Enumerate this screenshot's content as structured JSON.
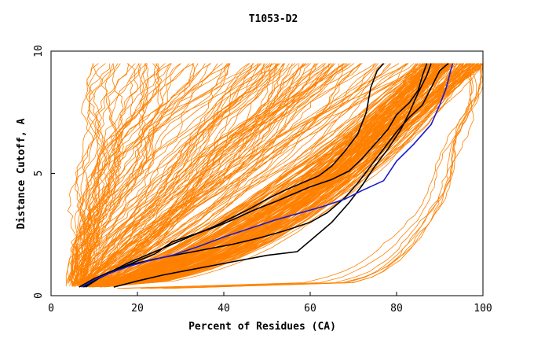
{
  "chart_data": {
    "type": "line",
    "title": "T1053-D2",
    "xlabel": "Percent of Residues (CA)",
    "ylabel": "Distance Cutoff, A",
    "xlim": [
      0,
      100
    ],
    "ylim": [
      0,
      10
    ],
    "x_ticks": [
      0,
      20,
      40,
      60,
      80,
      100
    ],
    "y_ticks": [
      0,
      5,
      10
    ],
    "grid": false,
    "colors": {
      "background_models": "#ff8000",
      "highlight_black": "#000000",
      "highlight_blue": "#1a1acc"
    },
    "background_models": {
      "description": "Approximately 300 orange model curves showing percent of residues within distance cutoff",
      "count": 300,
      "endpoint_range_pct": [
        10,
        100
      ]
    },
    "series": [
      {
        "name": "model-black-1",
        "color": "#000000",
        "points": [
          [
            7.5,
            0.35
          ],
          [
            10,
            0.6
          ],
          [
            14,
            1.0
          ],
          [
            18,
            1.35
          ],
          [
            22,
            1.65
          ],
          [
            26,
            1.95
          ],
          [
            30,
            2.25
          ],
          [
            34,
            2.55
          ],
          [
            38,
            2.85
          ],
          [
            42,
            3.2
          ],
          [
            46,
            3.55
          ],
          [
            50,
            3.95
          ],
          [
            54,
            4.3
          ],
          [
            58,
            4.6
          ],
          [
            62,
            4.9
          ],
          [
            65,
            5.3
          ],
          [
            68,
            5.9
          ],
          [
            71,
            6.6
          ],
          [
            73,
            7.5
          ],
          [
            74,
            8.5
          ],
          [
            75.5,
            9.2
          ],
          [
            77,
            9.5
          ]
        ]
      },
      {
        "name": "model-black-2",
        "color": "#000000",
        "points": [
          [
            14.5,
            0.35
          ],
          [
            20,
            0.6
          ],
          [
            26,
            0.85
          ],
          [
            32,
            1.05
          ],
          [
            38,
            1.25
          ],
          [
            44,
            1.45
          ],
          [
            50,
            1.65
          ],
          [
            57,
            1.8
          ],
          [
            61,
            2.4
          ],
          [
            65,
            3.0
          ],
          [
            69,
            3.8
          ],
          [
            72,
            4.5
          ],
          [
            75,
            5.3
          ],
          [
            78,
            6.0
          ],
          [
            81,
            6.8
          ],
          [
            83,
            7.5
          ],
          [
            85,
            8.3
          ],
          [
            87,
            9.0
          ],
          [
            88,
            9.5
          ]
        ]
      },
      {
        "name": "model-black-3",
        "color": "#000000",
        "points": [
          [
            6.5,
            0.35
          ],
          [
            10,
            0.7
          ],
          [
            14,
            1.0
          ],
          [
            19,
            1.3
          ],
          [
            24,
            1.5
          ],
          [
            30,
            1.7
          ],
          [
            36,
            1.9
          ],
          [
            42,
            2.1
          ],
          [
            48,
            2.35
          ],
          [
            54,
            2.65
          ],
          [
            60,
            3.0
          ],
          [
            64,
            3.4
          ],
          [
            68,
            4.0
          ],
          [
            71,
            4.6
          ],
          [
            74,
            5.3
          ],
          [
            77,
            6.0
          ],
          [
            80,
            6.7
          ],
          [
            83,
            7.3
          ],
          [
            86,
            7.8
          ],
          [
            88,
            8.5
          ],
          [
            90,
            9.2
          ],
          [
            92,
            9.5
          ]
        ]
      },
      {
        "name": "model-black-4",
        "color": "#000000",
        "points": [
          [
            8,
            0.35
          ],
          [
            11,
            0.7
          ],
          [
            15,
            1.05
          ],
          [
            19,
            1.35
          ],
          [
            24,
            1.7
          ],
          [
            28,
            2.2
          ],
          [
            33,
            2.5
          ],
          [
            38,
            2.8
          ],
          [
            42,
            3.1
          ],
          [
            47,
            3.5
          ],
          [
            52,
            3.85
          ],
          [
            56,
            4.15
          ],
          [
            60,
            4.45
          ],
          [
            65,
            4.75
          ],
          [
            69,
            5.1
          ],
          [
            72,
            5.6
          ],
          [
            75,
            6.2
          ],
          [
            78,
            6.8
          ],
          [
            80,
            7.4
          ],
          [
            83,
            7.9
          ],
          [
            85,
            8.4
          ],
          [
            86,
            9.0
          ],
          [
            87,
            9.5
          ]
        ]
      },
      {
        "name": "model-blue",
        "color": "#1a1acc",
        "points": [
          [
            7,
            0.35
          ],
          [
            10,
            0.65
          ],
          [
            14,
            0.95
          ],
          [
            18,
            1.2
          ],
          [
            22,
            1.4
          ],
          [
            28,
            1.65
          ],
          [
            34,
            2.0
          ],
          [
            40,
            2.4
          ],
          [
            46,
            2.75
          ],
          [
            52,
            3.1
          ],
          [
            58,
            3.4
          ],
          [
            63,
            3.65
          ],
          [
            68,
            3.95
          ],
          [
            72,
            4.3
          ],
          [
            77,
            4.7
          ],
          [
            80,
            5.5
          ],
          [
            84,
            6.2
          ],
          [
            88,
            7.0
          ],
          [
            90,
            7.8
          ],
          [
            91.5,
            8.5
          ],
          [
            92.5,
            9.2
          ],
          [
            93,
            9.5
          ]
        ]
      }
    ]
  }
}
